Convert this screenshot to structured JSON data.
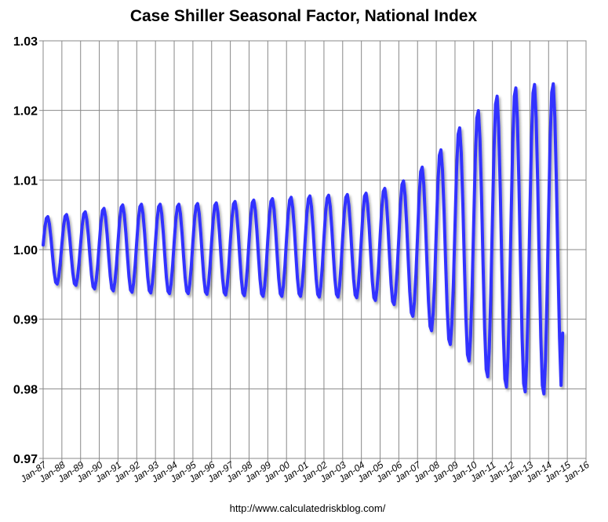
{
  "chart_data": {
    "type": "line",
    "title": "Case Shiller Seasonal Factor, National Index",
    "source_note": "http://www.calculatedriskblog.com/",
    "xlabel": "",
    "ylabel": "",
    "ylim": [
      0.97,
      1.03
    ],
    "y_ticks": [
      "0.97",
      "0.98",
      "0.99",
      "1.00",
      "1.01",
      "1.02",
      "1.03"
    ],
    "x_ticks": [
      "Jan-87",
      "Jan-88",
      "Jan-89",
      "Jan-90",
      "Jan-91",
      "Jan-92",
      "Jan-93",
      "Jan-94",
      "Jan-95",
      "Jan-96",
      "Jan-97",
      "Jan-98",
      "Jan-99",
      "Jan-00",
      "Jan-01",
      "Jan-02",
      "Jan-03",
      "Jan-04",
      "Jan-05",
      "Jan-06",
      "Jan-07",
      "Jan-08",
      "Jan-09",
      "Jan-10",
      "Jan-11",
      "Jan-12",
      "Jan-13",
      "Jan-14",
      "Jan-15",
      "Jan-16"
    ],
    "grid": true,
    "series": [
      {
        "name": "Seasonal Factor",
        "color": "#3333ff",
        "start": "Jan-87",
        "end": "Oct-14",
        "annual_peaks": [
          1.0048,
          1.0051,
          1.0055,
          1.006,
          1.0065,
          1.0066,
          1.0066,
          1.0066,
          1.0067,
          1.0068,
          1.007,
          1.0072,
          1.0074,
          1.0076,
          1.0078,
          1.0079,
          1.008,
          1.0082,
          1.0089,
          1.01,
          1.012,
          1.0145,
          1.0177,
          1.0202,
          1.0223,
          1.0235,
          1.024,
          1.0241
        ],
        "annual_troughs": [
          0.995,
          0.9948,
          0.9943,
          0.994,
          0.9938,
          0.9937,
          0.9936,
          0.9936,
          0.9935,
          0.9934,
          0.9933,
          0.9932,
          0.9932,
          0.9932,
          0.9931,
          0.9931,
          0.993,
          0.9926,
          0.992,
          0.9903,
          0.9882,
          0.9862,
          0.9838,
          0.9815,
          0.98,
          0.9793,
          0.979,
          0.979
        ],
        "last_value": 0.988
      }
    ]
  }
}
